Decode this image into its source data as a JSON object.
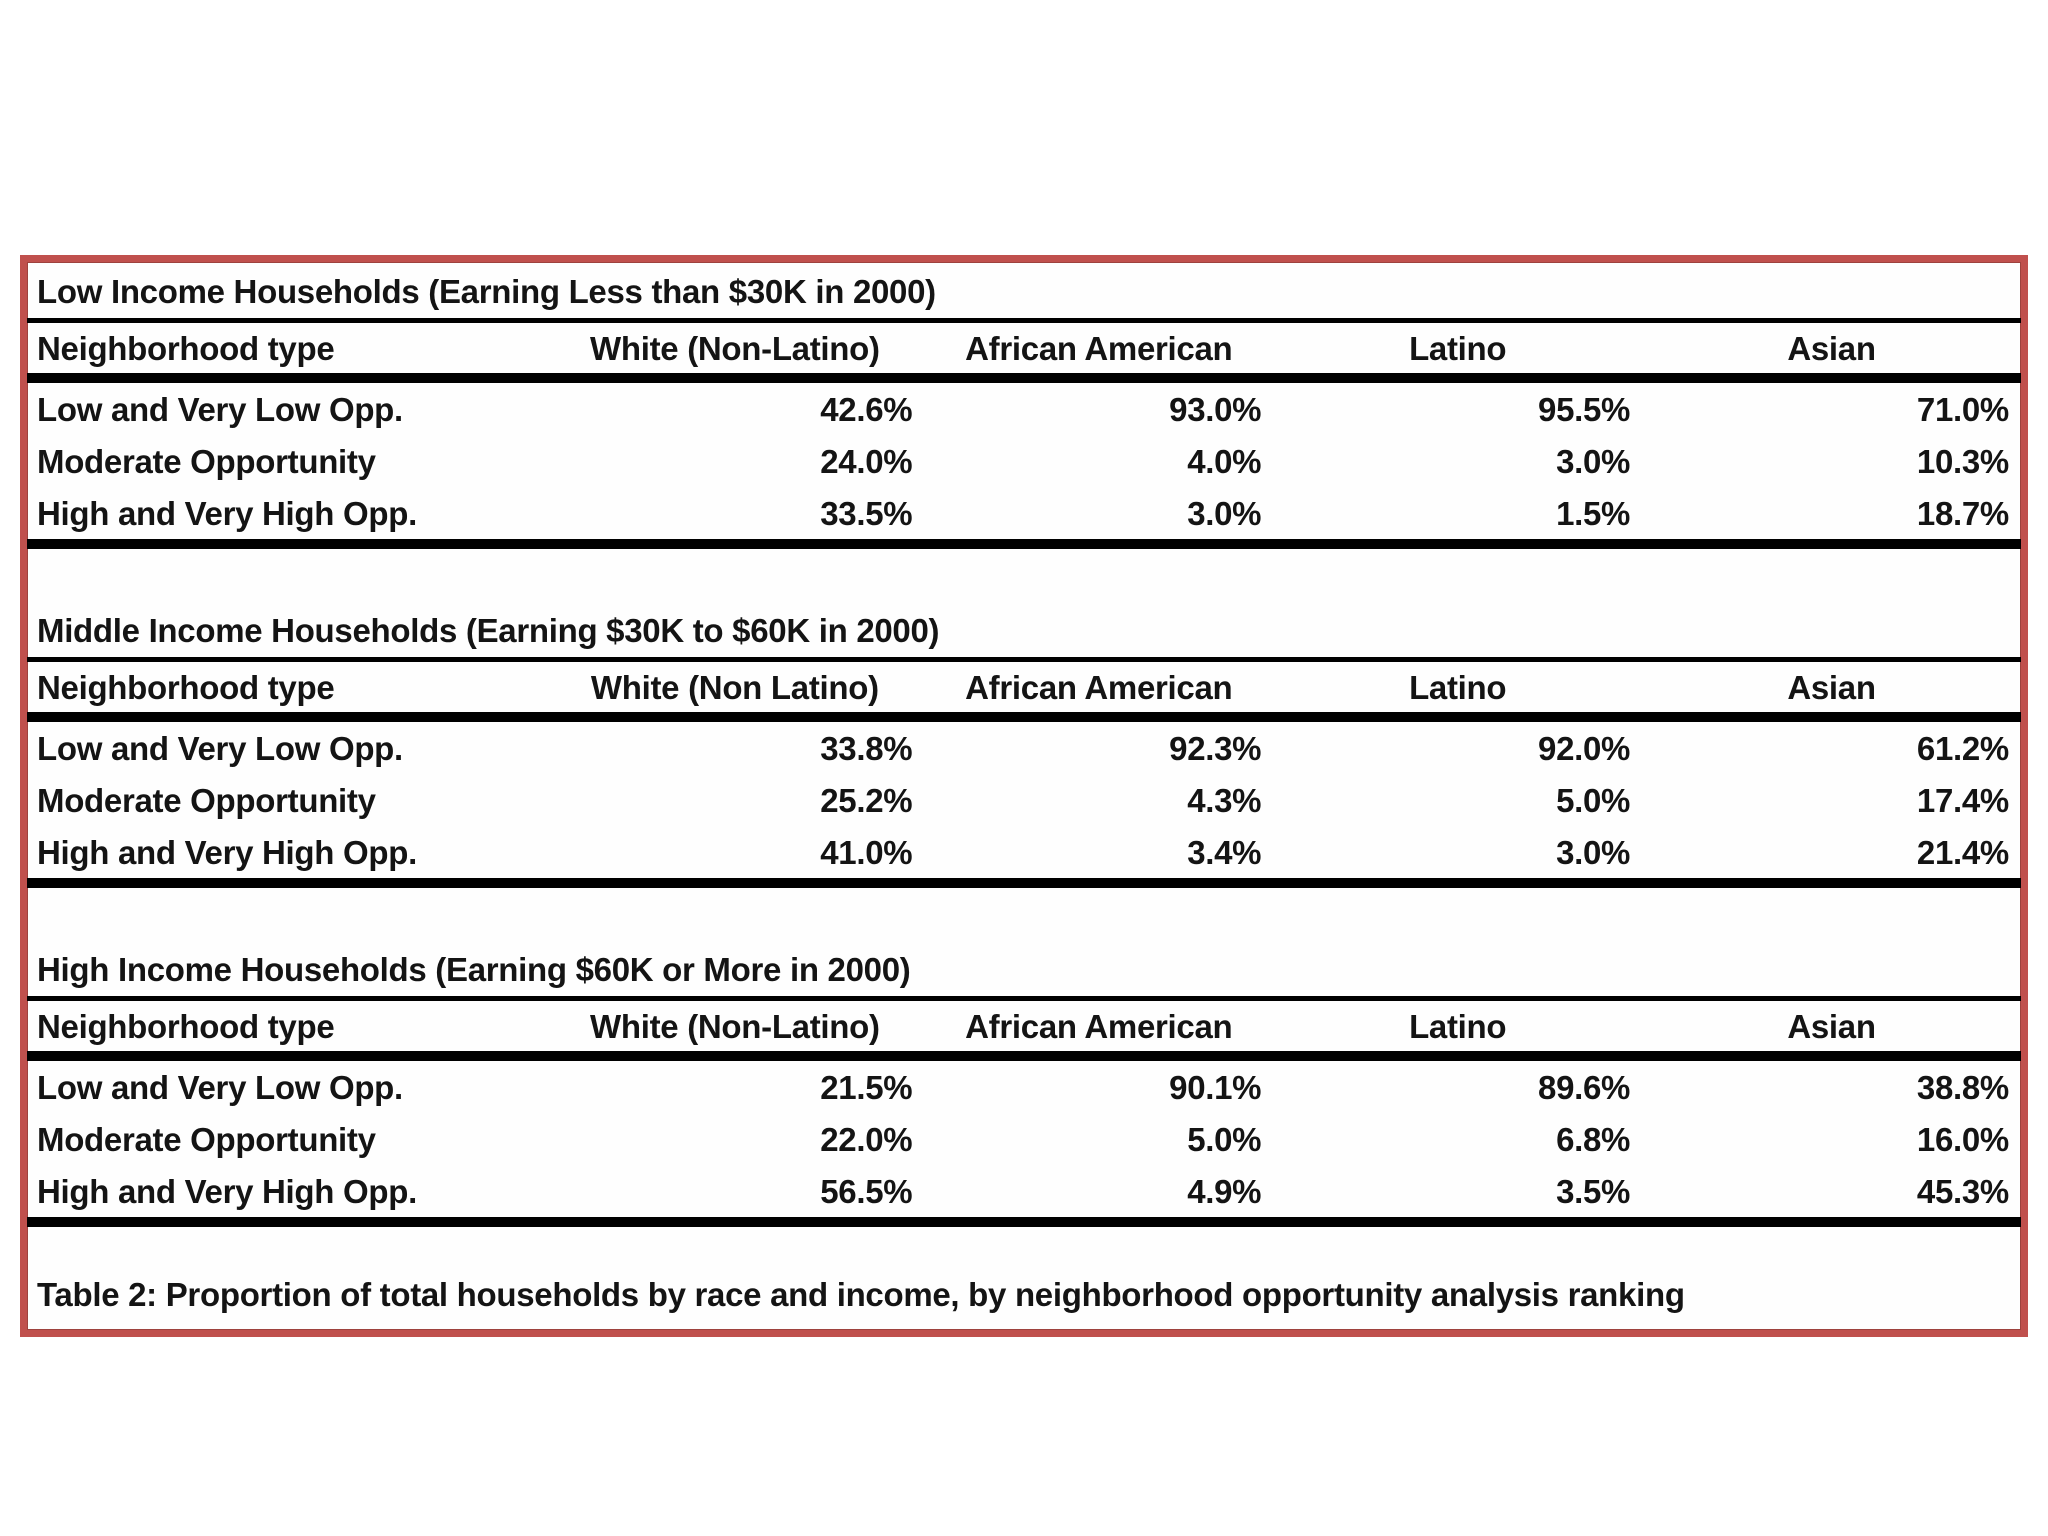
{
  "page": {
    "caption": "Table 2: Proportion of total households by race and income, by neighborhood opportunity analysis ranking"
  },
  "colors": {
    "frame_border": "#c0504d",
    "rule": "#000000",
    "text": "#141414",
    "background": "#ffffff"
  },
  "tables": [
    {
      "title": "Low Income Households (Earning Less than $30K in 2000)",
      "columns": [
        "Neighborhood type",
        "White (Non-Latino)",
        "African American",
        "Latino",
        "Asian"
      ],
      "rows": [
        {
          "label": "Low and Very Low Opp.",
          "values": [
            "42.6%",
            "93.0%",
            "95.5%",
            "71.0%"
          ]
        },
        {
          "label": "Moderate Opportunity",
          "values": [
            "24.0%",
            "4.0%",
            "3.0%",
            "10.3%"
          ]
        },
        {
          "label": "High and Very High Opp.",
          "values": [
            "33.5%",
            "3.0%",
            "1.5%",
            "18.7%"
          ]
        }
      ]
    },
    {
      "title": "Middle Income Households (Earning $30K to $60K in 2000)",
      "columns": [
        "Neighborhood type",
        "White (Non Latino)",
        "African American",
        "Latino",
        "Asian"
      ],
      "rows": [
        {
          "label": "Low and Very Low Opp.",
          "values": [
            "33.8%",
            "92.3%",
            "92.0%",
            "61.2%"
          ]
        },
        {
          "label": "Moderate Opportunity",
          "values": [
            "25.2%",
            "4.3%",
            "5.0%",
            "17.4%"
          ]
        },
        {
          "label": "High and Very High Opp.",
          "values": [
            "41.0%",
            "3.4%",
            "3.0%",
            "21.4%"
          ]
        }
      ]
    },
    {
      "title": "High Income Households (Earning $60K or More in 2000)",
      "columns": [
        "Neighborhood type",
        "White (Non-Latino)",
        "African American",
        "Latino",
        "Asian"
      ],
      "rows": [
        {
          "label": "Low and Very Low Opp.",
          "values": [
            "21.5%",
            "90.1%",
            "89.6%",
            "38.8%"
          ]
        },
        {
          "label": "Moderate Opportunity",
          "values": [
            "22.0%",
            "5.0%",
            "6.8%",
            "16.0%"
          ]
        },
        {
          "label": "High and Very High Opp.",
          "values": [
            "56.5%",
            "4.9%",
            "3.5%",
            "45.3%"
          ]
        }
      ]
    }
  ]
}
